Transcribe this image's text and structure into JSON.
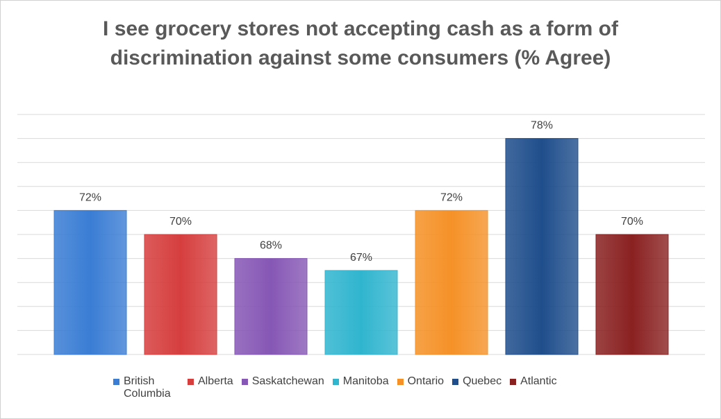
{
  "chart_data": {
    "type": "bar",
    "title": "I see grocery stores not accepting cash as a form of discrimination against some consumers (% Agree)",
    "categories": [
      "British Columbia",
      "Alberta",
      "Saskatchewan",
      "Manitoba",
      "Ontario",
      "Quebec",
      "Atlantic"
    ],
    "values": [
      72,
      70,
      68,
      67,
      72,
      78,
      70
    ],
    "value_labels": [
      "72%",
      "70%",
      "68%",
      "67%",
      "72%",
      "78%",
      "70%"
    ],
    "colors": [
      "#3a7dd4",
      "#d63e3e",
      "#8657b5",
      "#30b5cf",
      "#f59127",
      "#1f4e8c",
      "#8a2121"
    ],
    "ylim": [
      60,
      80
    ],
    "yticks": [
      60,
      62,
      64,
      66,
      68,
      70,
      72,
      74,
      76,
      78,
      80
    ],
    "grid": true,
    "legend": "bottom"
  }
}
